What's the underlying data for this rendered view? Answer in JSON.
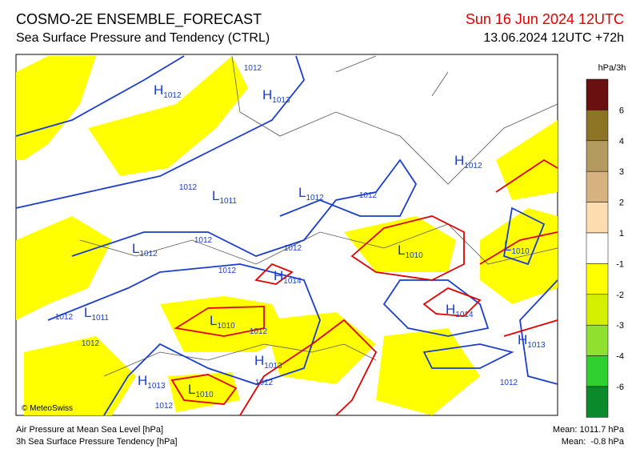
{
  "header": {
    "title": "COSMO-2E ENSEMBLE_FORECAST",
    "subtitle": "Sea Surface Pressure and Tendency (CTRL)",
    "valid_time": "Sun 16 Jun 2024 12UTC",
    "run": "13.06.2024 12UTC +72h"
  },
  "legend": {
    "unit": "hPa/3h",
    "labels": [
      "6",
      "4",
      "3",
      "2",
      "1",
      "-1",
      "-2",
      "-3",
      "-4",
      "-6"
    ],
    "colors": [
      "#6b1010",
      "#8c7424",
      "#b39a5e",
      "#d6b27e",
      "#fddcb0",
      "#ffffff",
      "#ffff00",
      "#d4f000",
      "#90e030",
      "#2ed030",
      "#0a8a2a"
    ]
  },
  "map": {
    "credit": "© MeteoSwiss",
    "centers": [
      {
        "kind": "H",
        "pressure": "1012"
      },
      {
        "kind": "H",
        "pressure": "1013"
      },
      {
        "kind": "H",
        "pressure": "1012"
      },
      {
        "kind": "L",
        "pressure": "1011"
      },
      {
        "kind": "L",
        "pressure": "1012"
      },
      {
        "kind": "L",
        "pressure": "1012"
      },
      {
        "kind": "H",
        "pressure": "1014"
      },
      {
        "kind": "L",
        "pressure": "1010"
      },
      {
        "kind": "L",
        "pressure": "1010"
      },
      {
        "kind": "L",
        "pressure": "1011"
      },
      {
        "kind": "L",
        "pressure": "1010"
      },
      {
        "kind": "H",
        "pressure": "1013"
      },
      {
        "kind": "H",
        "pressure": "1014"
      },
      {
        "kind": "H",
        "pressure": "1013"
      },
      {
        "kind": "H",
        "pressure": "1013"
      },
      {
        "kind": "L",
        "pressure": "1010"
      }
    ],
    "isobar_labels": [
      "1012",
      "1012",
      "1012",
      "1012",
      "1012",
      "1012",
      "1012",
      "1012",
      "1012",
      "1012",
      "1012",
      "1012"
    ]
  },
  "footer": {
    "left": [
      "Air Pressure at Mean Sea Level [hPa]",
      "3h Sea Surface Pressure Tendency [hPa]"
    ],
    "right": [
      "Mean: 1011.7 hPa",
      "Mean:  -0.8 hPa"
    ]
  }
}
